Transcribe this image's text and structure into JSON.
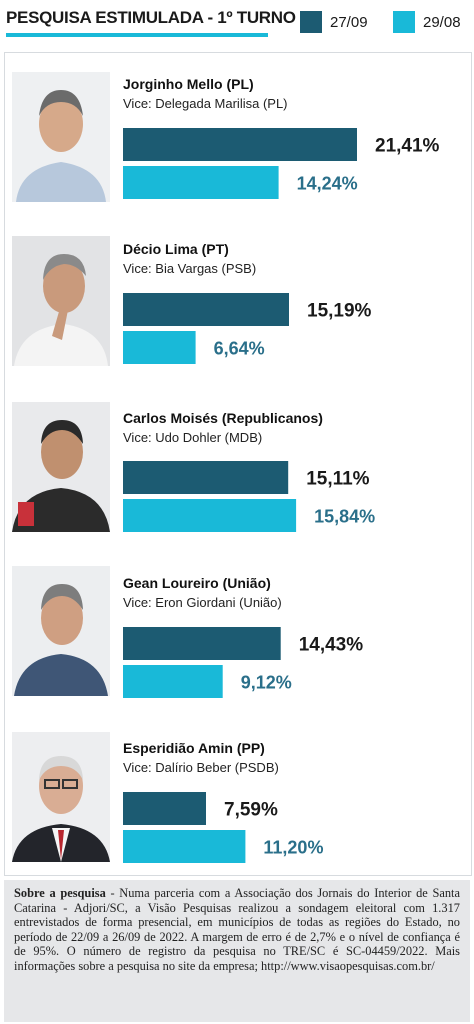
{
  "header": {
    "title": "PESQUISA ESTIMULADA - 1º TURNO"
  },
  "legend": [
    {
      "label": "27/09",
      "color": "#1c5b72"
    },
    {
      "label": "29/08",
      "color": "#19b9d8"
    }
  ],
  "candidates": [
    {
      "name": "Jorginho Mello (PL)",
      "vice": "Vice: Delegada Marilisa (PL)"
    },
    {
      "name": "Décio Lima (PT)",
      "vice": "Vice: Bia Vargas (PSB)"
    },
    {
      "name": "Carlos Moisés (Republicanos)",
      "vice": "Vice: Udo Dohler (MDB)"
    },
    {
      "name": "Gean Loureiro (União)",
      "vice": "Vice: Eron Giordani (União)"
    },
    {
      "name": "Esperidião Amin (PP)",
      "vice": "Vice: Dalírio Beber (PSDB)"
    }
  ],
  "chart_data": {
    "type": "bar",
    "orientation": "horizontal",
    "categories": [
      "Jorginho Mello (PL)",
      "Décio Lima (PT)",
      "Carlos Moisés (Republicanos)",
      "Gean Loureiro (União)",
      "Esperidião Amin (PP)"
    ],
    "series": [
      {
        "name": "27/09",
        "color": "#1c5b72",
        "values": [
          21.41,
          15.19,
          15.11,
          14.43,
          7.59
        ],
        "labels": [
          "21,41%",
          "15,19%",
          "15,11%",
          "14,43%",
          "7,59%"
        ]
      },
      {
        "name": "29/08",
        "color": "#19b9d8",
        "values": [
          14.24,
          6.64,
          15.84,
          9.12,
          11.2
        ],
        "labels": [
          "14,24%",
          "6,64%",
          "15,84%",
          "9,12%",
          "11,20%"
        ]
      }
    ],
    "label_colors": [
      "#1a1a1a",
      "#2a6f8a"
    ],
    "grid": false,
    "legend_position": "top-right"
  },
  "note": {
    "lead": "Sobre a pesquisa",
    "text": " - Numa parceria com a Associação dos Jornais do Interior de Santa Catarina - Adjori/SC, a Visão Pesquisas realizou a sondagem eleitoral com 1.317 entrevistados de forma presencial, em municípios de todas as regiões do Estado, no período de 22/09 a 26/09 de 2022. A margem de erro é de 2,7% e o nível de confiança é de 95%. O número de registro da pesquisa no TRE/SC é SC-04459/2022. Mais informações sobre a pesquisa no site da empresa; http://www.visaopesquisas.com.br/"
  }
}
